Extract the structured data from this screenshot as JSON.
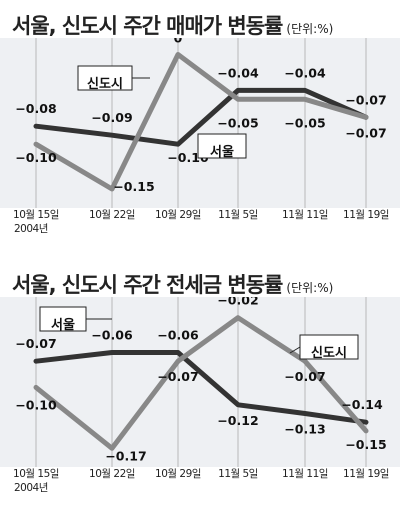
{
  "chart_data": [
    {
      "type": "line",
      "title": "서울, 신도시 주간 매매가 변동률",
      "unit": "(단위:%)",
      "categories": [
        "10월 15일",
        "10월 22일",
        "10월 29일",
        "11월 5일",
        "11월 11일",
        "11월 19일"
      ],
      "year_label": "2004년",
      "series": [
        {
          "name": "서울",
          "color": "#333333",
          "values": [
            -0.08,
            -0.09,
            -0.1,
            -0.04,
            -0.04,
            -0.07
          ],
          "labels": [
            "−0.08",
            "−0.09",
            "−0.10",
            "−0.04",
            "−0.04",
            "−0.07"
          ]
        },
        {
          "name": "신도시",
          "color": "#888888",
          "values": [
            -0.1,
            -0.15,
            0,
            -0.05,
            -0.05,
            -0.07
          ],
          "labels": [
            "−0.10",
            "−0.15",
            "0",
            "−0.05",
            "−0.05",
            "−0.07"
          ]
        }
      ],
      "ylim": [
        -0.16,
        0.005
      ]
    },
    {
      "type": "line",
      "title": "서울, 신도시 주간 전세금 변동률",
      "unit": "(단위:%)",
      "categories": [
        "10월 15일",
        "10월 22일",
        "10월 29일",
        "11월 5일",
        "11월 11일",
        "11월 19일"
      ],
      "year_label": "2004년",
      "series": [
        {
          "name": "서울",
          "color": "#333333",
          "values": [
            -0.07,
            -0.06,
            -0.06,
            -0.12,
            -0.13,
            -0.14
          ],
          "labels": [
            "−0.07",
            "−0.06",
            "−0.06",
            "−0.12",
            "−0.13",
            "−0.14"
          ]
        },
        {
          "name": "신도시",
          "color": "#888888",
          "values": [
            -0.1,
            -0.17,
            -0.07,
            -0.02,
            -0.07,
            -0.15
          ],
          "labels": [
            "−0.10",
            "−0.17",
            "−0.07",
            "−0.02",
            "−0.07",
            "−0.15"
          ]
        }
      ],
      "ylim": [
        -0.18,
        -0.01
      ]
    }
  ]
}
